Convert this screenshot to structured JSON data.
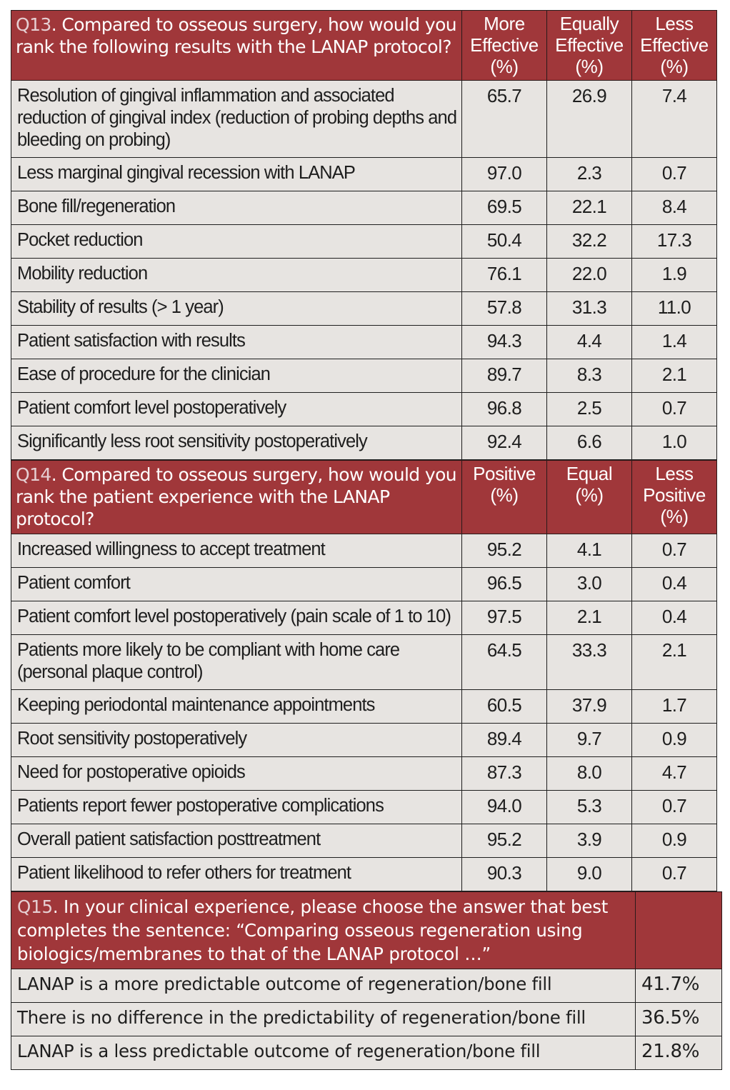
{
  "q13": {
    "number": "Q13",
    "question": ". Compared to osseous surgery, how would you rank the following results with the LANAP protocol?",
    "columns": [
      {
        "line1": "More",
        "line2": "Effective",
        "line3": "(%)"
      },
      {
        "line1": "Equally",
        "line2": "Effective",
        "line3": "(%)"
      },
      {
        "line1": "Less",
        "line2": "Effective",
        "line3": "(%)"
      }
    ],
    "rows": [
      {
        "label": "Resolution of gingival inflammation and associated reduction of gingival index (reduction of probing depths and bleeding on probing)",
        "values": [
          "65.7",
          "26.9",
          "7.4"
        ]
      },
      {
        "label": "Less marginal gingival recession with LANAP",
        "values": [
          "97.0",
          "2.3",
          "0.7"
        ]
      },
      {
        "label": "Bone fill/regeneration",
        "values": [
          "69.5",
          "22.1",
          "8.4"
        ]
      },
      {
        "label": "Pocket reduction",
        "values": [
          "50.4",
          "32.2",
          "17.3"
        ]
      },
      {
        "label": "Mobility reduction",
        "values": [
          "76.1",
          "22.0",
          "1.9"
        ]
      },
      {
        "label": "Stability of results (> 1 year)",
        "values": [
          "57.8",
          "31.3",
          "11.0"
        ]
      },
      {
        "label": "Patient satisfaction with results",
        "values": [
          "94.3",
          "4.4",
          "1.4"
        ]
      },
      {
        "label": "Ease of procedure for the clinician",
        "values": [
          "89.7",
          "8.3",
          "2.1"
        ]
      },
      {
        "label": "Patient comfort level postoperatively",
        "values": [
          "96.8",
          "2.5",
          "0.7"
        ]
      },
      {
        "label": "Significantly less root sensitivity postoperatively",
        "values": [
          "92.4",
          "6.6",
          "1.0"
        ]
      }
    ]
  },
  "q14": {
    "number": "Q14",
    "question": ". Compared to osseous surgery, how would you rank the patient experience with the LANAP protocol?",
    "columns": [
      {
        "line1": "Positive",
        "line2": "(%)",
        "line3": ""
      },
      {
        "line1": "Equal",
        "line2": "(%)",
        "line3": ""
      },
      {
        "line1": "Less",
        "line2": "Positive",
        "line3": "(%)"
      }
    ],
    "rows": [
      {
        "label": "Increased willingness to accept treatment",
        "values": [
          "95.2",
          "4.1",
          "0.7"
        ]
      },
      {
        "label": "Patient comfort",
        "values": [
          "96.5",
          "3.0",
          "0.4"
        ]
      },
      {
        "label": "Patient comfort level postoperatively (pain scale of 1 to 10)",
        "values": [
          "97.5",
          "2.1",
          "0.4"
        ]
      },
      {
        "label": "Patients more likely to be compliant with home care (personal plaque control)",
        "values": [
          "64.5",
          "33.3",
          "2.1"
        ]
      },
      {
        "label": "Keeping periodontal maintenance appointments",
        "values": [
          "60.5",
          "37.9",
          "1.7"
        ]
      },
      {
        "label": "Root sensitivity postoperatively",
        "values": [
          "89.4",
          "9.7",
          "0.9"
        ]
      },
      {
        "label": "Need for postoperative opioids",
        "values": [
          "87.3",
          "8.0",
          "4.7"
        ]
      },
      {
        "label": "Patients report fewer postoperative complications",
        "values": [
          "94.0",
          "5.3",
          "0.7"
        ]
      },
      {
        "label": "Overall patient satisfaction posttreatment",
        "values": [
          "95.2",
          "3.9",
          "0.9"
        ]
      },
      {
        "label": "Patient likelihood to refer others for treatment",
        "values": [
          "90.3",
          "9.0",
          "0.7"
        ]
      }
    ]
  },
  "q15": {
    "number": "Q15",
    "question": ". In your clinical experience, please choose the answer that best completes the sentence: “Comparing osseous regeneration using biologics/membranes to that of the LANAP protocol …”",
    "rows": [
      {
        "label": "LANAP is a more predictable outcome of regeneration/bone fill",
        "value": "41.7%"
      },
      {
        "label": "There is no difference in the predictability of regeneration/bone fill",
        "value": "36.5%"
      },
      {
        "label": "LANAP is a less predictable outcome of regeneration/bone fill",
        "value": "21.8%"
      }
    ]
  },
  "colors": {
    "header_bg": "#a0373a",
    "header_text": "#ffffff",
    "question_number": "#e6cfd2",
    "row_bg": "#e7e4e1",
    "row_text": "#1e1e1e"
  }
}
